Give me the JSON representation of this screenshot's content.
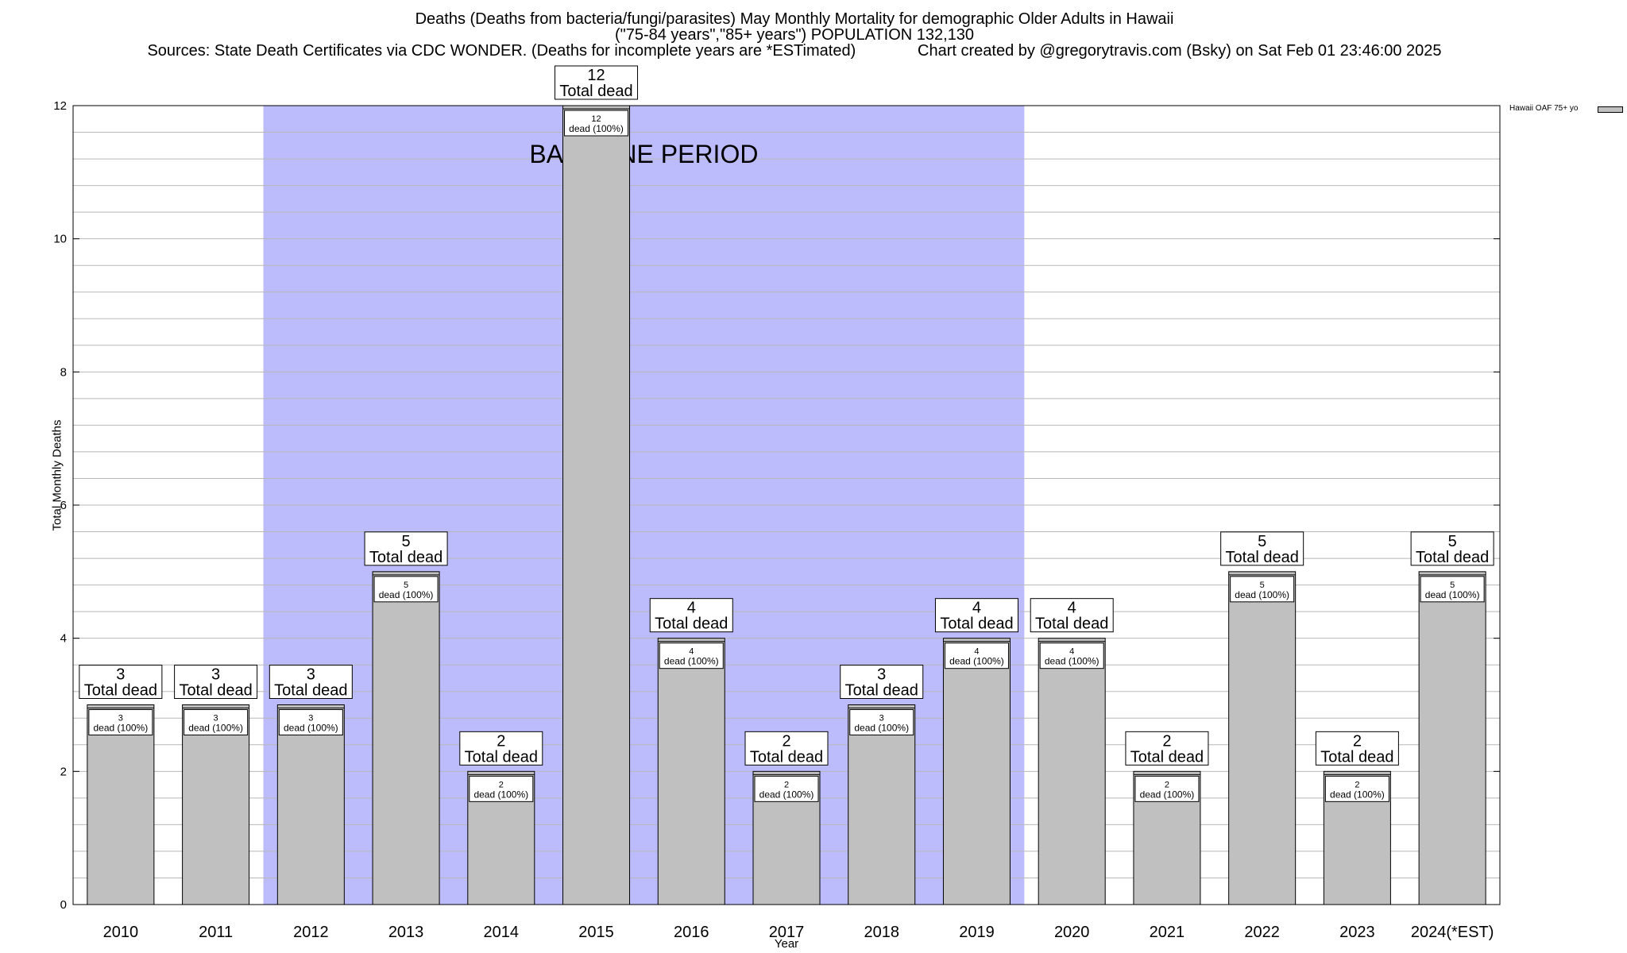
{
  "title": {
    "line1": "Deaths (Deaths from bacteria/fungi/parasites) May Monthly Mortality for demographic Older Adults in Hawaii",
    "line2": "(\"75-84 years\",\"85+ years\") POPULATION 132,130",
    "line3": "Sources: State Death Certificates via CDC WONDER. (Deaths for incomplete years are *ESTimated)              Chart created by @gregorytravis.com (Bsky) on Sat Feb 01 23:46:00 2025"
  },
  "chart_data": {
    "type": "bar",
    "categories": [
      "2010",
      "2011",
      "2012",
      "2013",
      "2014",
      "2015",
      "2016",
      "2017",
      "2018",
      "2019",
      "2020",
      "2021",
      "2022",
      "2023",
      "2024(*EST)"
    ],
    "series": [
      {
        "name": "Hawaii OAF 75+ yo",
        "values": [
          3,
          3,
          3,
          5,
          2,
          12,
          4,
          2,
          3,
          4,
          4,
          2,
          5,
          2,
          5
        ]
      }
    ],
    "xlabel": "Year",
    "ylabel": "Total Monthly Deaths",
    "ylim": [
      0,
      12
    ],
    "yticks": [
      0,
      2,
      4,
      6,
      8,
      10,
      12
    ],
    "grid": true,
    "legend": "top-right",
    "bar_label_top": "Total dead",
    "bar_label_inner": "dead (100%)",
    "baseline": {
      "label": "BASELINE PERIOD",
      "from": "2012",
      "to": "2019",
      "color": "#bcbcfc"
    },
    "bar_color": "#c0c0c0"
  }
}
